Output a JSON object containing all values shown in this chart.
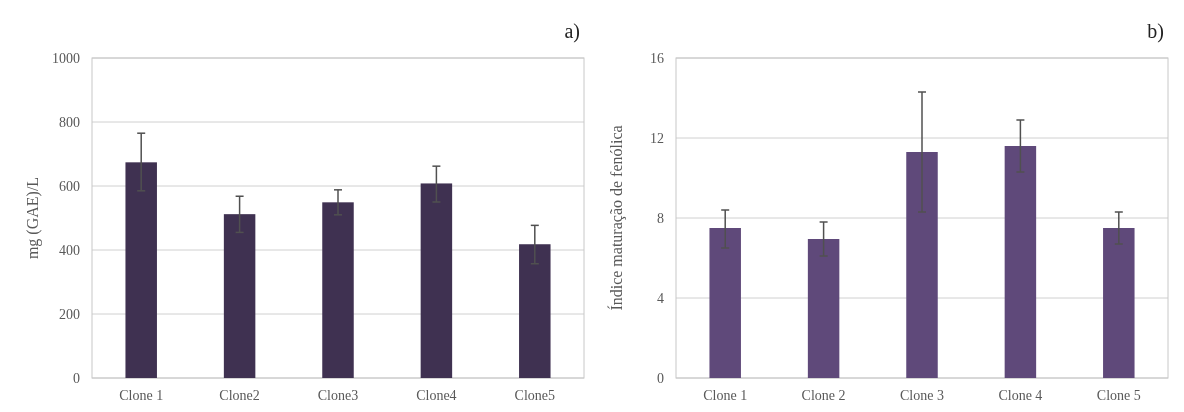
{
  "chart_data": [
    {
      "type": "bar",
      "title": "a)",
      "ylabel": "mg (GAE)/L",
      "categories": [
        "Clone 1",
        "Clone2",
        "Clone3",
        "Clone4",
        "Clone5"
      ],
      "values": [
        674,
        512,
        549,
        608,
        418
      ],
      "errors": [
        [
          585,
          765
        ],
        [
          455,
          568
        ],
        [
          510,
          588
        ],
        [
          550,
          662
        ],
        [
          357,
          477
        ]
      ],
      "color": "#3f3151",
      "ylim": [
        0,
        1000
      ],
      "yticks": [
        0,
        200,
        400,
        600,
        800,
        1000
      ],
      "grid": "y"
    },
    {
      "type": "bar",
      "title": "b)",
      "ylabel": "Índice maturação de fenólica",
      "categories": [
        "Clone 1",
        "Clone 2",
        "Clone 3",
        "Clone 4",
        "Clone 5"
      ],
      "values": [
        7.5,
        6.95,
        11.3,
        11.6,
        7.5
      ],
      "errors": [
        [
          6.5,
          8.4
        ],
        [
          6.1,
          7.8
        ],
        [
          8.3,
          14.3
        ],
        [
          10.3,
          12.9
        ],
        [
          6.7,
          8.3
        ]
      ],
      "color": "#5f497a",
      "ylim": [
        0,
        16
      ],
      "yticks": [
        0,
        4,
        8,
        12,
        16
      ],
      "grid": "y"
    }
  ]
}
